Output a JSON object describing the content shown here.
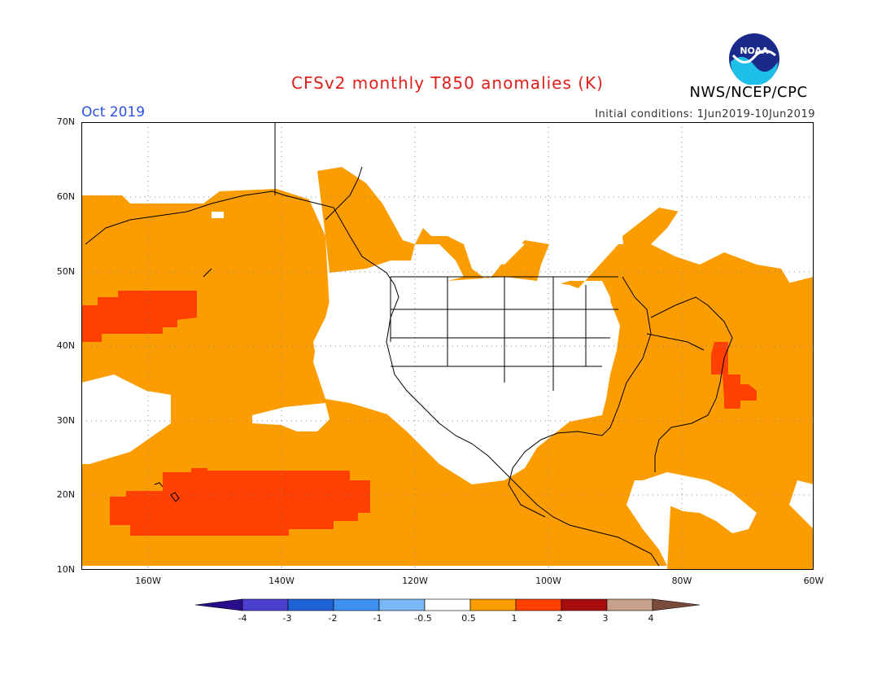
{
  "header": {
    "title": "CFSv2 monthly T850 anomalies (K)",
    "agency": "NWS/NCEP/CPC",
    "logo_text": "NOAA",
    "month": "Oct 2019",
    "initial_conditions": "Initial conditions: 1Jun2019-10Jun2019"
  },
  "axes": {
    "lat_labels": [
      "70N",
      "60N",
      "50N",
      "40N",
      "30N",
      "20N",
      "10N"
    ],
    "lon_labels": [
      "160W",
      "140W",
      "120W",
      "100W",
      "80W",
      "60W"
    ]
  },
  "colorbar": {
    "labels": [
      "-4",
      "-3",
      "-2",
      "-1",
      "-0.5",
      "0.5",
      "1",
      "2",
      "3",
      "4"
    ],
    "colors": [
      "#2a0f8c",
      "#4b3fcf",
      "#1f63d6",
      "#3f8ff0",
      "#7ab8f5",
      "#ffffff",
      "#fb9c00",
      "#ff4000",
      "#a80d0d",
      "#c7a08a",
      "#7a4a3a"
    ]
  },
  "map_colors": {
    "anomaly_0.5_1": "#fb9c00",
    "anomaly_1_2": "#ff4000",
    "land_outline": "#000000",
    "grid": "#888888"
  }
}
